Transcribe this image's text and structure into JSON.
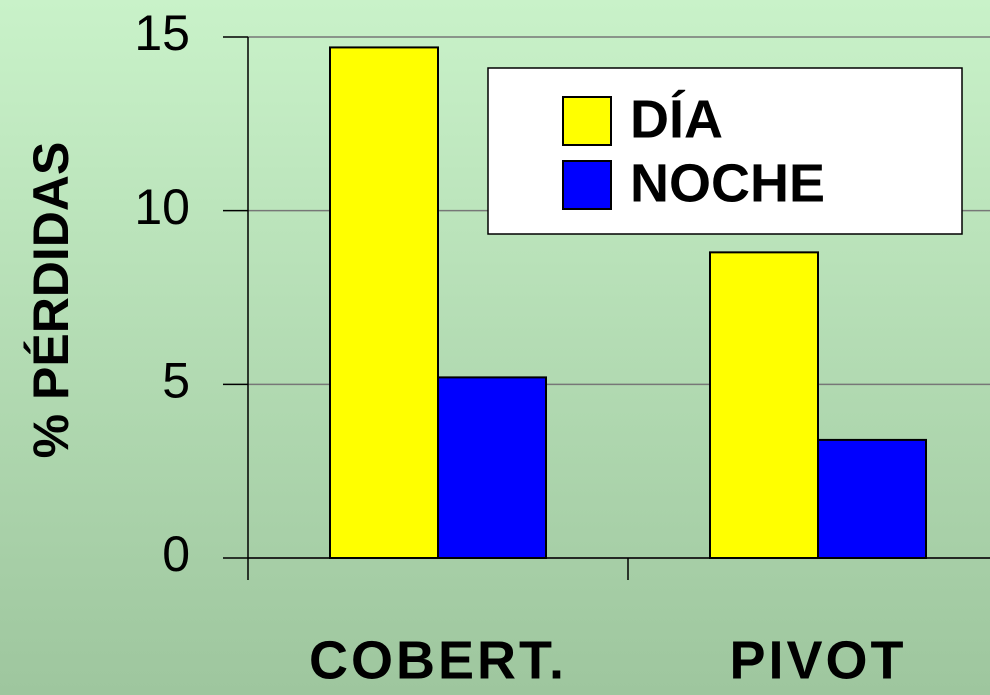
{
  "chart_data": {
    "type": "bar",
    "categories": [
      "COBERT.",
      "PIVOT"
    ],
    "series": [
      {
        "name": "DÍA",
        "color": "#ffff00",
        "values": [
          14.7,
          8.8
        ]
      },
      {
        "name": "NOCHE",
        "color": "#0000ff",
        "values": [
          5.2,
          3.4
        ]
      }
    ],
    "y_label": "% PÉRDIDAS",
    "ylim": [
      0,
      15
    ],
    "yticks": [
      0,
      5,
      10,
      15
    ],
    "grid": true,
    "legend": "upper right"
  }
}
